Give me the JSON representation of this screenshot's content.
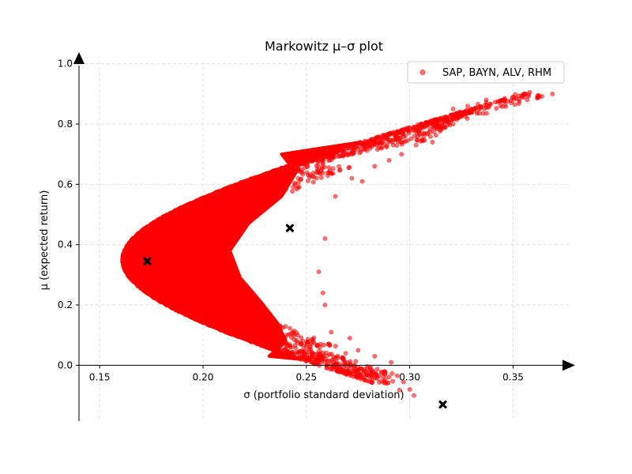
{
  "chart_data": {
    "type": "scatter",
    "title": "Markowitz μ–σ plot",
    "xlabel": "σ  (portfolio standard deviation)",
    "ylabel": "μ  (expected return)",
    "xlim": [
      0.14,
      0.38
    ],
    "ylim": [
      -0.185,
      1.02
    ],
    "xticks": [
      0.15,
      0.2,
      0.25,
      0.3,
      0.35
    ],
    "xtick_labels": [
      "0.15",
      "0.20",
      "0.25",
      "0.30",
      "0.35"
    ],
    "yticks": [
      0.0,
      0.2,
      0.4,
      0.6,
      0.8,
      1.0
    ],
    "ytick_labels": [
      "0.0",
      "0.2",
      "0.4",
      "0.6",
      "0.8",
      "1.0"
    ],
    "grid": true,
    "legend_position": "top-right",
    "series": [
      {
        "name": "SAP, BAYN, ALV, RHM",
        "color": "#ff0000",
        "marker": "circle",
        "frontier": {
          "min_variance_sigma": 0.161,
          "min_variance_mu": 0.35,
          "tips": [
            {
              "x": 0.358,
              "y": 0.905
            },
            {
              "x": 0.302,
              "y": -0.1
            }
          ]
        },
        "outer_points": [
          {
            "x": 0.358,
            "y": 0.905
          },
          {
            "x": 0.351,
            "y": 0.898
          },
          {
            "x": 0.344,
            "y": 0.878
          },
          {
            "x": 0.346,
            "y": 0.885
          },
          {
            "x": 0.337,
            "y": 0.88
          },
          {
            "x": 0.333,
            "y": 0.866
          },
          {
            "x": 0.337,
            "y": 0.872
          },
          {
            "x": 0.331,
            "y": 0.848
          },
          {
            "x": 0.328,
            "y": 0.86
          },
          {
            "x": 0.324,
            "y": 0.84
          },
          {
            "x": 0.321,
            "y": 0.85
          },
          {
            "x": 0.318,
            "y": 0.82
          },
          {
            "x": 0.327,
            "y": 0.825
          },
          {
            "x": 0.321,
            "y": 0.8
          },
          {
            "x": 0.312,
            "y": 0.8
          },
          {
            "x": 0.307,
            "y": 0.77
          },
          {
            "x": 0.299,
            "y": 0.745
          },
          {
            "x": 0.303,
            "y": 0.73
          },
          {
            "x": 0.311,
            "y": 0.74
          },
          {
            "x": 0.296,
            "y": 0.7
          },
          {
            "x": 0.283,
            "y": 0.66
          },
          {
            "x": 0.29,
            "y": 0.68
          },
          {
            "x": 0.277,
            "y": 0.61
          },
          {
            "x": 0.272,
            "y": 0.62
          },
          {
            "x": 0.264,
            "y": 0.56
          },
          {
            "x": 0.259,
            "y": 0.42
          },
          {
            "x": 0.256,
            "y": 0.31
          },
          {
            "x": 0.258,
            "y": 0.24
          },
          {
            "x": 0.259,
            "y": 0.2
          },
          {
            "x": 0.262,
            "y": 0.11
          },
          {
            "x": 0.271,
            "y": 0.09
          },
          {
            "x": 0.275,
            "y": 0.05
          },
          {
            "x": 0.283,
            "y": 0.03
          },
          {
            "x": 0.273,
            "y": 0.0
          },
          {
            "x": 0.291,
            "y": 0.01
          },
          {
            "x": 0.266,
            "y": -0.01
          },
          {
            "x": 0.278,
            "y": -0.02
          },
          {
            "x": 0.285,
            "y": -0.035
          },
          {
            "x": 0.289,
            "y": -0.06
          },
          {
            "x": 0.297,
            "y": -0.055
          },
          {
            "x": 0.3,
            "y": -0.08
          },
          {
            "x": 0.295,
            "y": -0.082
          },
          {
            "x": 0.302,
            "y": -0.1
          },
          {
            "x": 0.281,
            "y": -0.005
          },
          {
            "x": 0.269,
            "y": 0.04
          }
        ]
      }
    ],
    "markers": [
      {
        "x": 0.173,
        "y": 0.345,
        "symbol": "X",
        "color": "#000000"
      },
      {
        "x": 0.242,
        "y": 0.455,
        "symbol": "X",
        "color": "#000000"
      },
      {
        "x": 0.316,
        "y": -0.13,
        "symbol": "X",
        "color": "#000000"
      }
    ]
  }
}
